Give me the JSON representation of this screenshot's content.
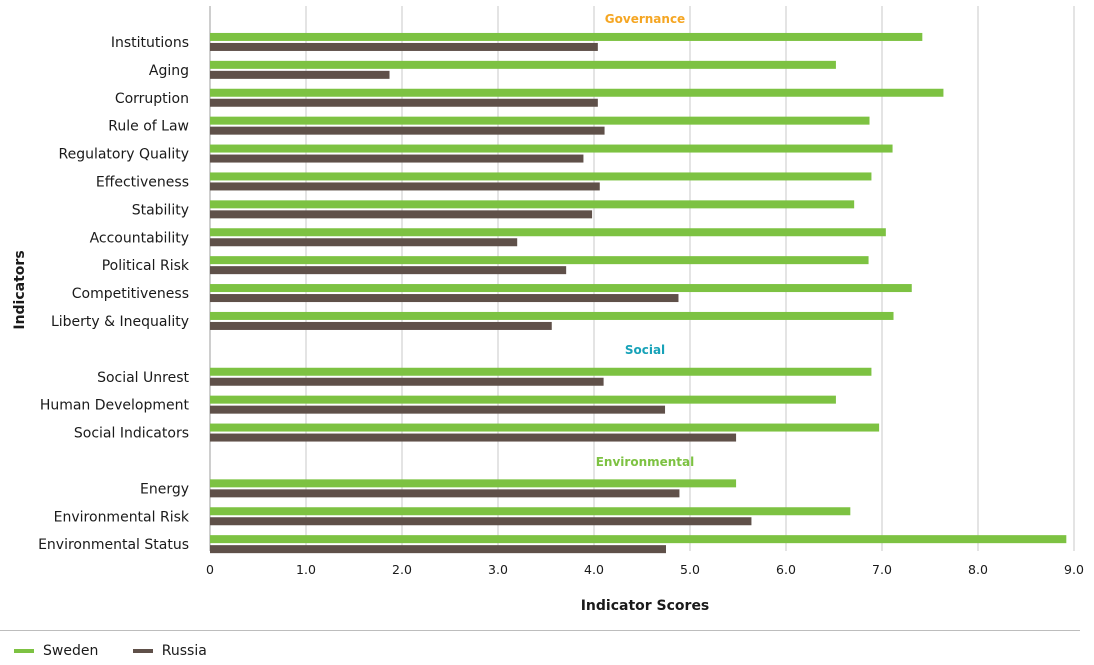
{
  "chart_data": {
    "type": "bar",
    "orientation": "horizontal",
    "xlabel": "Indicator Scores",
    "ylabel": "Indicators",
    "xlim": [
      0,
      9.0
    ],
    "xticks": [
      "0",
      "1.0",
      "2.0",
      "3.0",
      "4.0",
      "5.0",
      "6.0",
      "7.0",
      "8.0",
      "9.0"
    ],
    "grid": "vertical",
    "legend_position": "bottom-left",
    "groups": [
      {
        "label": "Governance",
        "color": "#f5a623",
        "categories": [
          "Institutions",
          "Aging",
          "Corruption",
          "Rule of Law",
          "Regulatory Quality",
          "Effectiveness",
          "Stability",
          "Accountability",
          "Political Risk",
          "Competitiveness",
          "Liberty & Inequality"
        ]
      },
      {
        "label": "Social",
        "color": "#17a2b8",
        "categories": [
          "Social Unrest",
          "Human Development",
          "Social Indicators"
        ]
      },
      {
        "label": "Environmental",
        "color": "#7dc242",
        "categories": [
          "Energy",
          "Environmental Risk",
          "Environmental Status"
        ]
      }
    ],
    "categories": [
      "Institutions",
      "Aging",
      "Corruption",
      "Rule of Law",
      "Regulatory Quality",
      "Effectiveness",
      "Stability",
      "Accountability",
      "Political Risk",
      "Competitiveness",
      "Liberty & Inequality",
      "Social Unrest",
      "Human Development",
      "Social Indicators",
      "Energy",
      "Environmental Risk",
      "Environmental Status"
    ],
    "series": [
      {
        "name": "Sweden",
        "color": "#7dc242",
        "values": [
          7.42,
          6.52,
          7.64,
          6.87,
          7.11,
          6.89,
          6.71,
          7.04,
          6.86,
          7.31,
          7.12,
          6.89,
          6.52,
          6.97,
          5.48,
          6.67,
          8.92
        ]
      },
      {
        "name": "Russia",
        "color": "#5f5049",
        "values": [
          4.04,
          1.87,
          4.04,
          4.11,
          3.89,
          4.06,
          3.98,
          3.2,
          3.71,
          4.88,
          3.56,
          4.1,
          4.74,
          5.48,
          4.89,
          5.64,
          4.75
        ]
      }
    ]
  }
}
